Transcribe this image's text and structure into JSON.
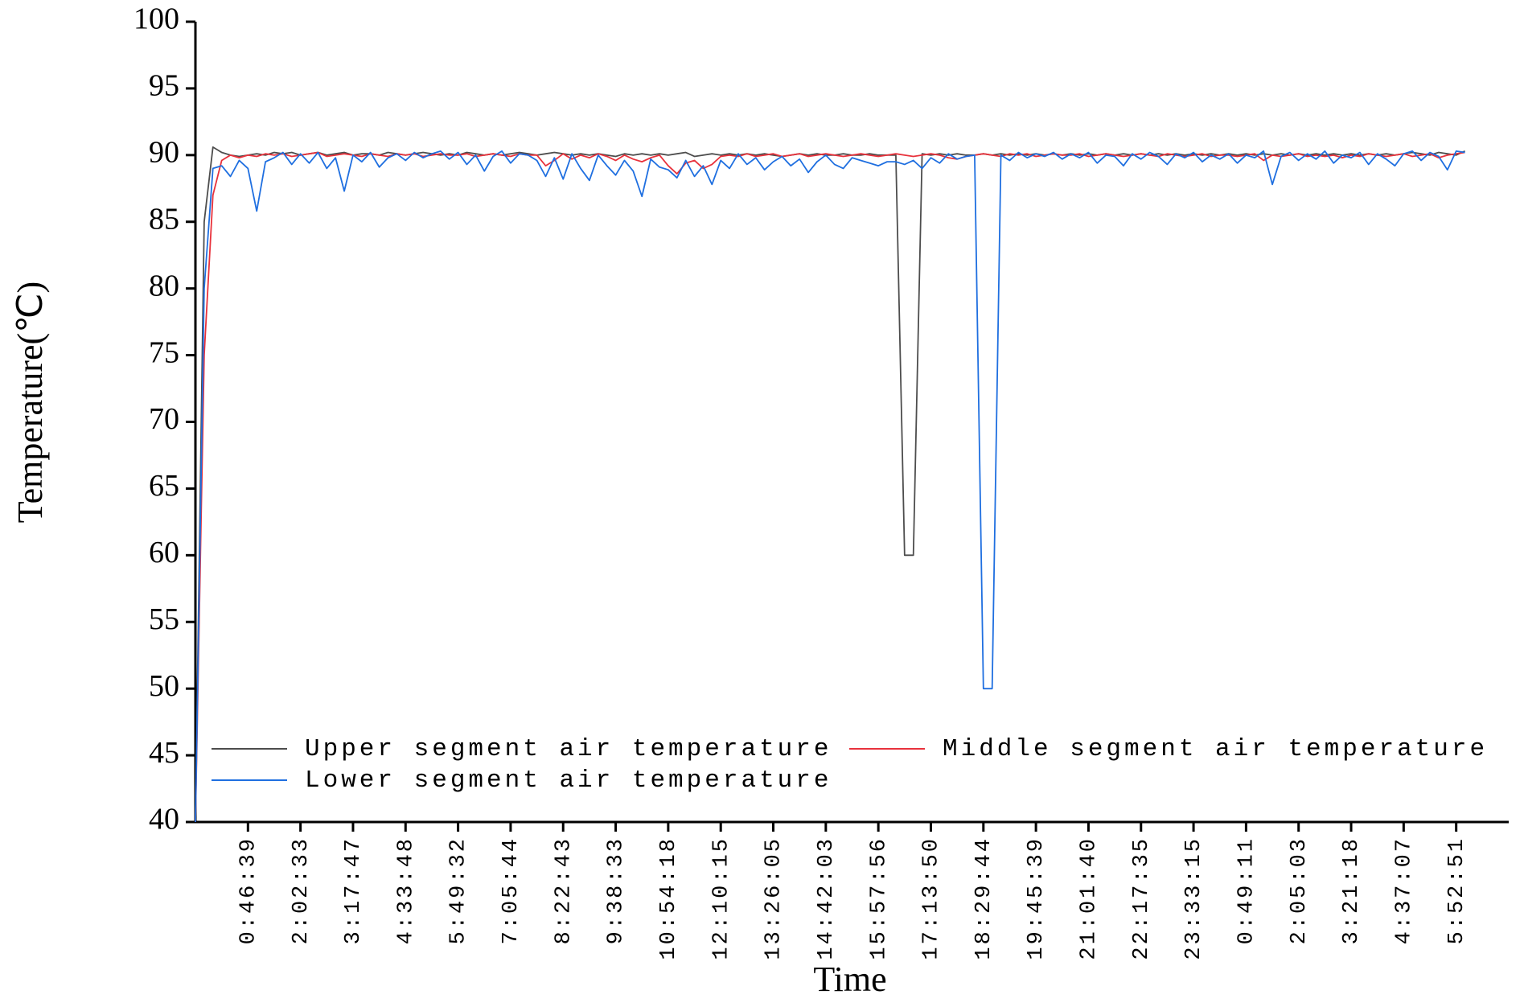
{
  "chart_data": {
    "type": "line",
    "x_label": "Time",
    "y_label": "Temperature(℃)",
    "ylim": [
      40,
      100
    ],
    "yticks": [
      40,
      45,
      50,
      55,
      60,
      65,
      70,
      75,
      80,
      85,
      90,
      95,
      100
    ],
    "legend": "lower left",
    "categories": [
      null,
      null,
      null,
      null,
      null,
      null,
      "0:46:39",
      null,
      null,
      null,
      null,
      null,
      "2:02:33",
      null,
      null,
      null,
      null,
      null,
      "3:17:47",
      null,
      null,
      null,
      null,
      null,
      "4:33:48",
      null,
      null,
      null,
      null,
      null,
      "5:49:32",
      null,
      null,
      null,
      null,
      null,
      "7:05:44",
      null,
      null,
      null,
      null,
      null,
      "8:22:43",
      null,
      null,
      null,
      null,
      null,
      "9:38:33",
      null,
      null,
      null,
      null,
      null,
      "10:54:18",
      null,
      null,
      null,
      null,
      null,
      "12:10:15",
      null,
      null,
      null,
      null,
      null,
      "13:26:05",
      null,
      null,
      null,
      null,
      null,
      "14:42:03",
      null,
      null,
      null,
      null,
      null,
      "15:57:56",
      null,
      null,
      null,
      null,
      null,
      "17:13:50",
      null,
      null,
      null,
      null,
      null,
      "18:29:44",
      null,
      null,
      null,
      null,
      null,
      "19:45:39",
      null,
      null,
      null,
      null,
      null,
      "21:01:40",
      null,
      null,
      null,
      null,
      null,
      "22:17:35",
      null,
      null,
      null,
      null,
      null,
      "23:33:15",
      null,
      null,
      null,
      null,
      null,
      "0:49:11",
      null,
      null,
      null,
      null,
      null,
      "2:05:03",
      null,
      null,
      null,
      null,
      null,
      "3:21:18",
      null,
      null,
      null,
      null,
      null,
      "4:37:07",
      null,
      null,
      null,
      null,
      null,
      "5:52:51",
      null
    ],
    "series": [
      {
        "name": "Upper segment air temperature",
        "color": "#4d4d4d",
        "values": [
          40,
          85,
          90.6,
          90.2,
          90.0,
          89.9,
          90.0,
          90.1,
          90.0,
          90.2,
          90.1,
          90.2,
          90.0,
          90.1,
          90.2,
          90.0,
          90.1,
          90.2,
          90.0,
          90.1,
          90.1,
          90.0,
          90.2,
          90.1,
          90.0,
          90.1,
          90.2,
          90.1,
          90.0,
          90.1,
          90.0,
          90.2,
          90.1,
          90.0,
          90.1,
          90.0,
          90.1,
          90.2,
          90.1,
          90.0,
          90.1,
          90.2,
          90.1,
          90.0,
          90.1,
          90.0,
          90.1,
          90.0,
          89.9,
          90.1,
          90.0,
          90.1,
          90.0,
          90.1,
          90.0,
          90.1,
          90.2,
          89.9,
          90.0,
          90.1,
          90.0,
          90.1,
          90.0,
          90.1,
          90.0,
          90.1,
          90.0,
          89.9,
          90.0,
          90.1,
          90.0,
          90.1,
          90.0,
          90.0,
          90.1,
          90.0,
          90.0,
          90.1,
          90.0,
          90.0,
          90.0,
          60,
          60,
          90.1,
          90.0,
          90.1,
          90.0,
          90.1,
          90.0,
          90.0,
          90.1,
          90.0,
          90.1,
          90.0,
          90.1,
          90.0,
          90.1,
          90.0,
          90.1,
          90.0,
          90.1,
          90.0,
          90.1,
          90.0,
          90.1,
          90.0,
          90.1,
          90.0,
          90.1,
          90.0,
          90.1,
          90.0,
          90.1,
          90.0,
          90.1,
          90.0,
          90.1,
          90.0,
          90.1,
          90.0,
          90.1,
          90.0,
          90.1,
          90.0,
          90.1,
          90.0,
          90.1,
          90.0,
          90.1,
          90.0,
          90.1,
          90.0,
          90.1,
          90.0,
          90.1,
          90.0,
          90.1,
          90.0,
          90.1,
          90.2,
          90.1,
          90.0,
          90.2,
          90.1,
          90.0,
          90.3
        ]
      },
      {
        "name": "Middle segment air temperature",
        "color": "#e8323c",
        "values": [
          40,
          75,
          87,
          89.6,
          90.0,
          89.8,
          90.0,
          89.9,
          90.1,
          90.0,
          90.1,
          89.9,
          90.0,
          90.1,
          90.2,
          89.9,
          90.0,
          90.1,
          90.0,
          89.9,
          90.1,
          90.0,
          89.9,
          90.1,
          90.0,
          90.1,
          89.9,
          90.0,
          90.1,
          90.0,
          90.0,
          90.1,
          89.9,
          90.0,
          90.1,
          90.0,
          89.9,
          90.1,
          90.0,
          90.0,
          89.2,
          89.6,
          90.1,
          89.7,
          90.0,
          89.8,
          90.1,
          89.9,
          89.6,
          90.0,
          89.7,
          89.5,
          89.8,
          90.0,
          89.2,
          88.6,
          89.4,
          89.6,
          89.0,
          89.3,
          89.9,
          90.0,
          89.9,
          90.1,
          89.9,
          90.0,
          90.1,
          89.9,
          90.0,
          90.1,
          89.9,
          90.0,
          90.1,
          90.0,
          89.9,
          90.0,
          90.1,
          90.0,
          89.9,
          90.0,
          90.1,
          90.0,
          89.9,
          90.0,
          90.1,
          90.0,
          89.8,
          89.7,
          89.9,
          90.0,
          90.1,
          90.0,
          89.9,
          90.1,
          90.0,
          90.1,
          89.9,
          90.0,
          90.1,
          90.0,
          90.0,
          90.1,
          89.9,
          90.0,
          90.1,
          90.0,
          89.9,
          90.0,
          90.1,
          90.0,
          89.9,
          90.1,
          90.0,
          89.9,
          90.0,
          90.1,
          89.9,
          90.0,
          90.0,
          89.9,
          90.0,
          90.1,
          89.6,
          90.0,
          89.9,
          90.0,
          90.1,
          89.9,
          90.0,
          89.9,
          90.0,
          89.8,
          90.0,
          89.9,
          90.1,
          90.0,
          89.9,
          90.0,
          90.1,
          89.9,
          90.0,
          90.1,
          89.8,
          90.0,
          90.1,
          90.2
        ]
      },
      {
        "name": "Lower segment air temperature",
        "color": "#1f6fe0",
        "values": [
          40,
          80,
          89,
          89.2,
          88.4,
          89.6,
          89.0,
          85.8,
          89.5,
          89.8,
          90.2,
          89.3,
          90.1,
          89.4,
          90.2,
          89.0,
          89.8,
          87.3,
          90.0,
          89.5,
          90.2,
          89.1,
          89.8,
          90.1,
          89.6,
          90.2,
          89.8,
          90.1,
          90.3,
          89.7,
          90.2,
          89.3,
          90.0,
          88.8,
          89.9,
          90.3,
          89.4,
          90.1,
          90.0,
          89.6,
          88.4,
          89.8,
          88.2,
          90.1,
          89.0,
          88.1,
          90.0,
          89.2,
          88.5,
          89.6,
          88.8,
          86.9,
          89.7,
          89.1,
          88.9,
          88.3,
          89.6,
          88.4,
          89.2,
          87.8,
          89.6,
          89.0,
          90.1,
          89.3,
          89.8,
          88.9,
          89.5,
          89.9,
          89.2,
          89.7,
          88.7,
          89.5,
          90.0,
          89.3,
          89.0,
          89.8,
          89.6,
          89.4,
          89.2,
          89.5,
          89.5,
          89.3,
          89.6,
          89.0,
          89.8,
          89.4,
          90.1,
          89.7,
          89.9,
          90.0,
          50,
          50,
          90.0,
          89.6,
          90.2,
          89.8,
          90.1,
          89.9,
          90.2,
          89.7,
          90.1,
          89.8,
          90.2,
          89.4,
          90.0,
          89.9,
          89.2,
          90.1,
          89.7,
          90.2,
          89.9,
          89.3,
          90.1,
          89.8,
          90.2,
          89.5,
          90.0,
          89.7,
          90.1,
          89.4,
          90.0,
          89.8,
          90.3,
          87.8,
          89.9,
          90.2,
          89.6,
          90.1,
          89.7,
          90.3,
          89.4,
          90.0,
          89.8,
          90.2,
          89.3,
          90.1,
          89.7,
          89.2,
          90.1,
          90.3,
          89.6,
          90.2,
          89.9,
          88.9,
          90.3,
          90.2
        ]
      }
    ]
  }
}
